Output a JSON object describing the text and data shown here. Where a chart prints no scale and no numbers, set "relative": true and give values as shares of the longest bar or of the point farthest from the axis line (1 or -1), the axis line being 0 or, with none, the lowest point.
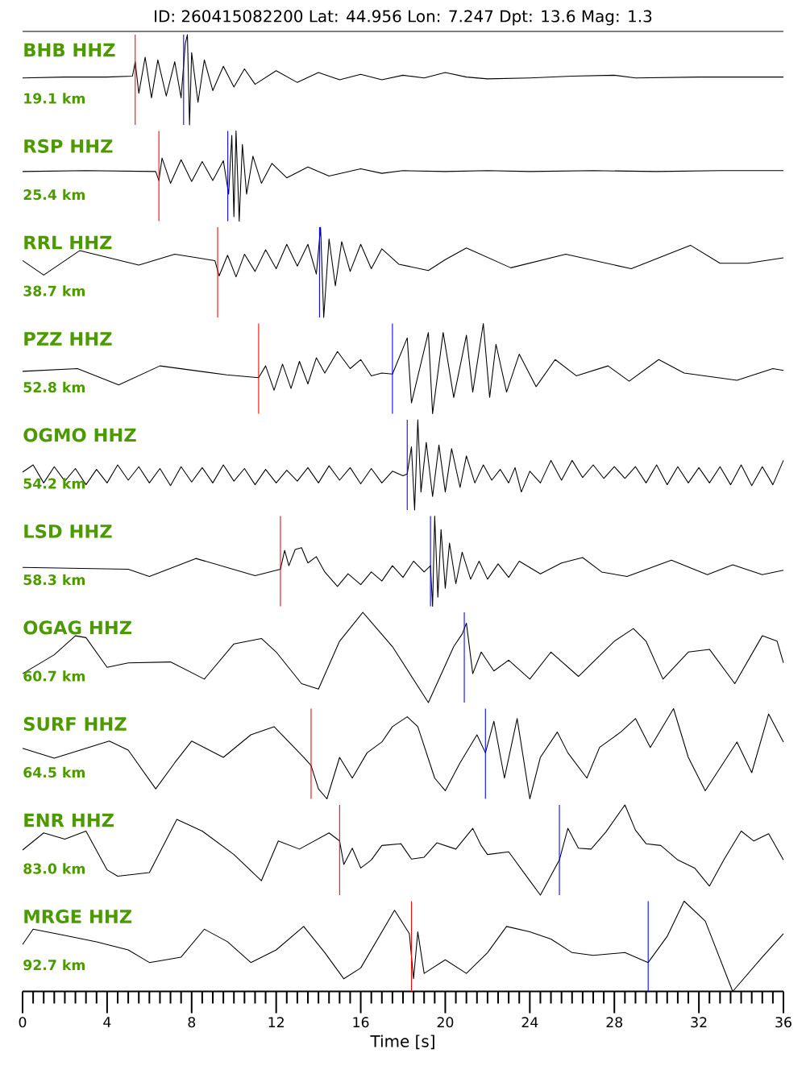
{
  "chart_data": [
    {
      "type": "line",
      "title": "BHB HHZ",
      "subtitle": "19.1 km",
      "annotations": [
        "ID: 260415082200 Lat: 44.956 Lon: 7.247 Dpt: 13.6 Mag: 1.3"
      ],
      "relative": true,
      "xlim": [
        0,
        36
      ],
      "tick_labels": false,
      "series": [
        {
          "color": "#000000",
          "x": [
            0,
            2,
            4,
            5.2,
            5.33,
            5.5,
            5.8,
            6.1,
            6.4,
            6.8,
            7.2,
            7.5,
            7.7,
            7.8,
            7.9,
            8.0,
            8.3,
            8.6,
            9,
            9.5,
            10,
            10.5,
            11,
            12,
            13,
            14,
            15,
            16,
            17,
            18,
            19,
            20,
            21,
            22,
            24,
            26,
            28,
            29,
            32,
            36
          ],
          "values": [
            0.52,
            0.53,
            0.53,
            0.54,
            0.7,
            0.35,
            0.75,
            0.3,
            0.72,
            0.32,
            0.7,
            0.3,
            0.9,
            1.0,
            0.0,
            0.8,
            0.25,
            0.72,
            0.38,
            0.65,
            0.42,
            0.62,
            0.45,
            0.6,
            0.47,
            0.58,
            0.5,
            0.56,
            0.5,
            0.55,
            0.52,
            0.58,
            0.53,
            0.51,
            0.52,
            0.54,
            0.55,
            0.52,
            0.53,
            0.53
          ]
        }
      ],
      "ref_lines": [
        {
          "axis": "x",
          "value": 5.33,
          "color": "#ff0000"
        },
        {
          "axis": "x",
          "value": 7.62,
          "color": "#0000ff"
        }
      ]
    },
    {
      "type": "line",
      "title": "RSP HHZ",
      "subtitle": "25.4 km",
      "relative": true,
      "xlim": [
        0,
        36
      ],
      "tick_labels": false,
      "series": [
        {
          "color": "#000000",
          "x": [
            0,
            3,
            6.3,
            6.45,
            6.6,
            7,
            7.5,
            8,
            8.5,
            9,
            9.5,
            9.75,
            9.9,
            10.0,
            10.1,
            10.25,
            10.4,
            10.6,
            10.9,
            11.3,
            11.8,
            12.5,
            13.5,
            14.5,
            16,
            17,
            18,
            20,
            22,
            24,
            27,
            30,
            33,
            36
          ],
          "values": [
            0.55,
            0.56,
            0.55,
            0.45,
            0.7,
            0.42,
            0.68,
            0.44,
            0.66,
            0.45,
            0.67,
            0.3,
            0.95,
            0.05,
            1.0,
            0.0,
            0.85,
            0.3,
            0.72,
            0.42,
            0.64,
            0.48,
            0.6,
            0.5,
            0.58,
            0.53,
            0.56,
            0.55,
            0.56,
            0.55,
            0.56,
            0.55,
            0.56,
            0.56
          ]
        }
      ],
      "ref_lines": [
        {
          "axis": "x",
          "value": 6.45,
          "color": "#ff0000"
        },
        {
          "axis": "x",
          "value": 9.71,
          "color": "#0000ff"
        }
      ]
    },
    {
      "type": "line",
      "title": "RRL HHZ",
      "subtitle": "38.7 km",
      "relative": true,
      "xlim": [
        0,
        36
      ],
      "tick_labels": false,
      "series": [
        {
          "color": "#000000",
          "x": [
            0,
            1.0,
            2.7,
            5.5,
            7.2,
            9.1,
            9.3,
            9.7,
            10.1,
            10.5,
            11,
            11.5,
            12,
            12.5,
            13,
            13.5,
            13.9,
            14.1,
            14.25,
            14.5,
            14.8,
            15.1,
            15.5,
            16.0,
            16.5,
            17.0,
            17.8,
            19.2,
            20.0,
            21.0,
            23.1,
            25.7,
            28.8,
            31.6,
            33.0,
            34.3,
            36
          ],
          "values": [
            0.63,
            0.47,
            0.74,
            0.58,
            0.7,
            0.63,
            0.46,
            0.69,
            0.45,
            0.7,
            0.51,
            0.75,
            0.54,
            0.81,
            0.57,
            0.81,
            0.48,
            1.0,
            0,
            0.87,
            0.35,
            0.84,
            0.51,
            0.81,
            0.54,
            0.76,
            0.59,
            0.52,
            0.64,
            0.77,
            0.55,
            0.7,
            0.54,
            0.8,
            0.6,
            0.6,
            0.66
          ]
        }
      ],
      "ref_lines": [
        {
          "axis": "x",
          "value": 9.23,
          "color": "#ff0000"
        },
        {
          "axis": "x",
          "value": 14.05,
          "color": "#0000ff"
        }
      ]
    },
    {
      "type": "line",
      "title": "PZZ HHZ",
      "subtitle": "52.8 km",
      "relative": true,
      "xlim": [
        0,
        36
      ],
      "tick_labels": false,
      "series": [
        {
          "color": "#000000",
          "x": [
            0,
            2.6,
            4.55,
            6.5,
            9.66,
            11.17,
            11.5,
            11.9,
            12.3,
            12.7,
            13.1,
            13.5,
            13.9,
            14.3,
            14.9,
            15.5,
            16.0,
            16.5,
            17.0,
            17.5,
            18.2,
            18.4,
            19.2,
            19.4,
            19.9,
            20.4,
            21.0,
            21.3,
            21.8,
            22.1,
            22.4,
            22.9,
            23.5,
            24.3,
            25.2,
            26.2,
            27.7,
            28.7,
            30.1,
            31.3,
            33.8,
            35.5,
            36
          ],
          "values": [
            0.47,
            0.5,
            0.32,
            0.53,
            0.43,
            0.4,
            0.53,
            0.26,
            0.55,
            0.28,
            0.58,
            0.33,
            0.62,
            0.45,
            0.69,
            0.5,
            0.6,
            0.42,
            0.45,
            0.44,
            0.84,
            0.12,
            0.9,
            0,
            0.9,
            0.18,
            0.87,
            0.24,
            1.0,
            0.18,
            0.77,
            0.24,
            0.66,
            0.3,
            0.6,
            0.42,
            0.53,
            0.36,
            0.6,
            0.45,
            0.37,
            0.5,
            0.48
          ]
        }
      ],
      "ref_lines": [
        {
          "axis": "x",
          "value": 11.17,
          "color": "#ff0000"
        },
        {
          "axis": "x",
          "value": 17.5,
          "color": "#0000ff"
        }
      ]
    },
    {
      "type": "line",
      "title": "OGMO HHZ",
      "subtitle": "54.2 km",
      "relative": true,
      "xlim": [
        0,
        36
      ],
      "tick_labels": false,
      "series": [
        {
          "color": "#000000",
          "x": [
            0,
            0.5,
            1,
            1.5,
            2,
            2.5,
            3,
            3.5,
            4,
            4.5,
            5,
            5.5,
            6,
            6.5,
            7,
            7.5,
            8,
            8.5,
            9,
            9.5,
            10,
            10.5,
            11,
            11.5,
            12,
            12.5,
            13,
            13.5,
            14,
            14.5,
            15,
            15.5,
            16,
            16.5,
            17,
            17.5,
            18.0,
            18.2,
            18.4,
            18.55,
            18.7,
            18.85,
            19.1,
            19.4,
            19.7,
            20.0,
            20.3,
            20.7,
            21.0,
            21.4,
            21.8,
            22.2,
            22.6,
            23.0,
            23.3,
            23.6,
            24,
            24.5,
            25,
            25.5,
            26,
            26.5,
            27,
            27.5,
            28,
            28.5,
            29,
            29.5,
            30,
            30.5,
            31,
            31.5,
            32,
            32.5,
            33,
            33.5,
            34,
            34.5,
            35,
            35.5,
            36
          ],
          "values": [
            0.42,
            0.5,
            0.3,
            0.48,
            0.32,
            0.46,
            0.28,
            0.45,
            0.3,
            0.5,
            0.33,
            0.48,
            0.3,
            0.46,
            0.27,
            0.48,
            0.31,
            0.47,
            0.3,
            0.5,
            0.32,
            0.46,
            0.28,
            0.45,
            0.3,
            0.44,
            0.32,
            0.47,
            0.3,
            0.49,
            0.33,
            0.47,
            0.29,
            0.46,
            0.3,
            0.43,
            0.38,
            0.4,
            0.7,
            0.0,
            1.0,
            0.2,
            0.75,
            0.15,
            0.72,
            0.2,
            0.68,
            0.25,
            0.6,
            0.3,
            0.5,
            0.33,
            0.45,
            0.3,
            0.47,
            0.2,
            0.43,
            0.3,
            0.55,
            0.33,
            0.55,
            0.36,
            0.5,
            0.35,
            0.48,
            0.35,
            0.48,
            0.3,
            0.5,
            0.28,
            0.48,
            0.3,
            0.47,
            0.3,
            0.48,
            0.28,
            0.5,
            0.27,
            0.48,
            0.28,
            0.55
          ]
        }
      ],
      "ref_lines": [
        {
          "axis": "x",
          "value": 18.2,
          "color": "#0000ff"
        }
      ]
    },
    {
      "type": "line",
      "title": "LSD HHZ",
      "subtitle": "58.3 km",
      "relative": true,
      "xlim": [
        0,
        36
      ],
      "tick_labels": false,
      "series": [
        {
          "color": "#000000",
          "x": [
            0,
            5.0,
            6.0,
            8.2,
            11.0,
            12.2,
            12.4,
            12.6,
            12.9,
            13.2,
            13.5,
            13.9,
            14.3,
            14.9,
            15.4,
            16.0,
            16.5,
            17.0,
            17.5,
            18.0,
            18.5,
            19.0,
            19.3,
            19.4,
            19.5,
            19.65,
            19.8,
            20.0,
            20.2,
            20.5,
            20.8,
            21.2,
            21.6,
            22.0,
            22.5,
            23.0,
            23.5,
            24.5,
            25.5,
            26.5,
            27.4,
            28.6,
            30.7,
            32.4,
            33.6,
            35.0,
            36
          ],
          "values": [
            0.43,
            0.41,
            0.33,
            0.53,
            0.34,
            0.41,
            0.62,
            0.45,
            0.63,
            0.65,
            0.48,
            0.55,
            0.38,
            0.22,
            0.36,
            0.24,
            0.38,
            0.28,
            0.45,
            0.32,
            0.5,
            0.38,
            0.45,
            0.0,
            1.0,
            0.1,
            0.85,
            0.2,
            0.7,
            0.25,
            0.6,
            0.3,
            0.5,
            0.3,
            0.47,
            0.32,
            0.5,
            0.36,
            0.48,
            0.54,
            0.38,
            0.33,
            0.51,
            0.35,
            0.46,
            0.35,
            0.4
          ]
        }
      ],
      "ref_lines": [
        {
          "axis": "x",
          "value": 12.2,
          "color": "#ff0000"
        },
        {
          "axis": "x",
          "value": 19.3,
          "color": "#0000ff"
        }
      ]
    },
    {
      "type": "line",
      "title": "OGAG HHZ",
      "subtitle": "60.7 km",
      "relative": true,
      "xlim": [
        0,
        36
      ],
      "tick_labels": false,
      "series": [
        {
          "color": "#000000",
          "x": [
            0,
            1.5,
            2.5,
            3.0,
            4.0,
            5.0,
            7.0,
            8.6,
            10.0,
            11.3,
            12.0,
            13.2,
            14.0,
            15.0,
            16.1,
            17.5,
            19.2,
            20.4,
            20.8,
            21.0,
            21.3,
            21.7,
            22.3,
            23.0,
            24.0,
            25.0,
            26.3,
            28.0,
            28.9,
            29.5,
            30.3,
            31.5,
            32.5,
            33.7,
            35.0,
            35.7,
            36
          ],
          "values": [
            0.32,
            0.53,
            0.74,
            0.72,
            0.39,
            0.44,
            0.45,
            0.26,
            0.65,
            0.71,
            0.56,
            0.21,
            0.15,
            0.68,
            1.0,
            0.62,
            0,
            0.62,
            0.76,
            0.88,
            0.32,
            0.56,
            0.35,
            0.47,
            0.26,
            0.56,
            0.29,
            0.68,
            0.82,
            0.68,
            0.26,
            0.56,
            0.59,
            0.21,
            0.74,
            0.68,
            0.44
          ]
        }
      ],
      "ref_lines": [
        {
          "axis": "x",
          "value": 20.9,
          "color": "#0000ff"
        }
      ]
    },
    {
      "type": "line",
      "title": "SURF HHZ",
      "subtitle": "64.5 km",
      "relative": true,
      "xlim": [
        0,
        36
      ],
      "tick_labels": false,
      "series": [
        {
          "color": "#000000",
          "x": [
            0,
            1.5,
            3.0,
            4.1,
            5.0,
            6.3,
            7.2,
            8.0,
            9.5,
            10.8,
            11.9,
            13.3,
            13.65,
            14.0,
            14.4,
            15.0,
            15.6,
            16.3,
            17.0,
            17.5,
            18.2,
            18.7,
            19.5,
            20.0,
            20.7,
            21.5,
            21.9,
            22.3,
            22.8,
            23.4,
            24.0,
            24.5,
            25.3,
            25.8,
            26.7,
            27.3,
            28.3,
            29.0,
            29.7,
            30.8,
            31.5,
            32.3,
            33.8,
            34.5,
            35.3,
            36
          ],
          "values": [
            0.56,
            0.45,
            0.56,
            0.64,
            0.54,
            0.11,
            0.4,
            0.64,
            0.46,
            0.71,
            0.8,
            0.46,
            0.37,
            0.11,
            0,
            0.46,
            0.23,
            0.51,
            0.63,
            0.8,
            0.91,
            0.8,
            0.23,
            0.09,
            0.4,
            0.71,
            0.51,
            0.86,
            0.23,
            0.89,
            0,
            0.46,
            0.74,
            0.51,
            0.23,
            0.57,
            0.74,
            0.89,
            0.57,
            1.0,
            0.46,
            0.09,
            0.63,
            0.29,
            0.94,
            0.63
          ]
        }
      ],
      "ref_lines": [
        {
          "axis": "x",
          "value": 13.65,
          "color": "#ff0000"
        },
        {
          "axis": "x",
          "value": 21.9,
          "color": "#0000ff"
        }
      ]
    },
    {
      "type": "line",
      "title": "ENR HHZ",
      "subtitle": "83.0 km",
      "relative": true,
      "xlim": [
        0,
        36
      ],
      "tick_labels": false,
      "series": [
        {
          "color": "#000000",
          "x": [
            0,
            1.0,
            2.0,
            3.0,
            4.0,
            4.5,
            6.0,
            7.3,
            8.5,
            10.0,
            11.3,
            12.1,
            13.1,
            14.5,
            15.0,
            15.2,
            15.6,
            16.0,
            16.5,
            17.0,
            17.9,
            18.4,
            19.0,
            19.6,
            20.5,
            21.3,
            21.7,
            22.0,
            23.0,
            24.0,
            24.5,
            25.4,
            25.8,
            26.3,
            26.9,
            27.6,
            28.5,
            29.0,
            29.5,
            30.2,
            31.0,
            31.8,
            32.5,
            33.2,
            34.0,
            34.6,
            35.3,
            36
          ],
          "values": [
            0.5,
            0.69,
            0.62,
            0.71,
            0.28,
            0.21,
            0.25,
            0.84,
            0.71,
            0.45,
            0.16,
            0.6,
            0.51,
            0.69,
            0.6,
            0.34,
            0.52,
            0.3,
            0.39,
            0.55,
            0.57,
            0.4,
            0.42,
            0.58,
            0.51,
            0.74,
            0.55,
            0.45,
            0.48,
            0.16,
            0,
            0.39,
            0.74,
            0.52,
            0.51,
            0.7,
            1.0,
            0.72,
            0.57,
            0.55,
            0.39,
            0.3,
            0.1,
            0.4,
            0.71,
            0.6,
            0.68,
            0.39
          ]
        }
      ],
      "ref_lines": [
        {
          "axis": "x",
          "value": 15.0,
          "color": "#ff0000"
        },
        {
          "axis": "x",
          "value": 25.4,
          "color": "#0000ff"
        }
      ]
    },
    {
      "type": "line",
      "title": "MRGE HHZ",
      "subtitle": "92.7 km",
      "xlabel": "Time [s]",
      "relative": true,
      "xlim": [
        0,
        36
      ],
      "tick_labels": "x",
      "xticks": [
        0,
        {
          "value": 0.5,
          "label": null
        },
        {
          "value": 1,
          "label": null
        },
        {
          "value": 1.5,
          "label": null
        },
        {
          "value": 2,
          "label": null
        },
        {
          "value": 2.5,
          "label": null
        },
        {
          "value": 3,
          "label": null
        },
        {
          "value": 3.5,
          "label": null
        },
        4,
        {
          "value": 4.5,
          "label": null
        },
        {
          "value": 5,
          "label": null
        },
        {
          "value": 5.5,
          "label": null
        },
        {
          "value": 6,
          "label": null
        },
        {
          "value": 6.5,
          "label": null
        },
        {
          "value": 7,
          "label": null
        },
        {
          "value": 7.5,
          "label": null
        },
        8,
        {
          "value": 8.5,
          "label": null
        },
        {
          "value": 9,
          "label": null
        },
        {
          "value": 9.5,
          "label": null
        },
        {
          "value": 10,
          "label": null
        },
        {
          "value": 10.5,
          "label": null
        },
        {
          "value": 11,
          "label": null
        },
        {
          "value": 11.5,
          "label": null
        },
        12,
        {
          "value": 12.5,
          "label": null
        },
        {
          "value": 13,
          "label": null
        },
        {
          "value": 13.5,
          "label": null
        },
        {
          "value": 14,
          "label": null
        },
        {
          "value": 14.5,
          "label": null
        },
        {
          "value": 15,
          "label": null
        },
        {
          "value": 15.5,
          "label": null
        },
        16,
        {
          "value": 16.5,
          "label": null
        },
        {
          "value": 17,
          "label": null
        },
        {
          "value": 17.5,
          "label": null
        },
        {
          "value": 18,
          "label": null
        },
        {
          "value": 18.5,
          "label": null
        },
        {
          "value": 19,
          "label": null
        },
        {
          "value": 19.5,
          "label": null
        },
        20,
        {
          "value": 20.5,
          "label": null
        },
        {
          "value": 21,
          "label": null
        },
        {
          "value": 21.5,
          "label": null
        },
        {
          "value": 22,
          "label": null
        },
        {
          "value": 22.5,
          "label": null
        },
        {
          "value": 23,
          "label": null
        },
        {
          "value": 23.5,
          "label": null
        },
        24,
        {
          "value": 24.5,
          "label": null
        },
        {
          "value": 25,
          "label": null
        },
        {
          "value": 25.5,
          "label": null
        },
        {
          "value": 26,
          "label": null
        },
        {
          "value": 26.5,
          "label": null
        },
        {
          "value": 27,
          "label": null
        },
        {
          "value": 27.5,
          "label": null
        },
        28,
        {
          "value": 28.5,
          "label": null
        },
        {
          "value": 29,
          "label": null
        },
        {
          "value": 29.5,
          "label": null
        },
        {
          "value": 30,
          "label": null
        },
        {
          "value": 30.5,
          "label": null
        },
        {
          "value": 31,
          "label": null
        },
        {
          "value": 31.5,
          "label": null
        },
        32,
        {
          "value": 32.5,
          "label": null
        },
        {
          "value": 33,
          "label": null
        },
        {
          "value": 33.5,
          "label": null
        },
        {
          "value": 34,
          "label": null
        },
        {
          "value": 34.5,
          "label": null
        },
        {
          "value": 35,
          "label": null
        },
        {
          "value": 35.5,
          "label": null
        },
        36
      ],
      "series": [
        {
          "color": "#000000",
          "x": [
            0,
            0.5,
            2.0,
            3.5,
            5.0,
            6.0,
            7.5,
            8.6,
            9.7,
            10.8,
            12.0,
            13.3,
            14.3,
            15.2,
            16.0,
            17.6,
            18.3,
            18.5,
            18.7,
            19.0,
            20.0,
            21.0,
            22.0,
            22.9,
            24.0,
            25.0,
            26.0,
            27.0,
            28.5,
            29.6,
            30.5,
            31.3,
            32.3,
            33.6,
            35.0,
            36
          ],
          "values": [
            0.52,
            0.69,
            0.62,
            0.55,
            0.46,
            0.32,
            0.38,
            0.69,
            0.55,
            0.32,
            0.46,
            0.72,
            0.43,
            0.14,
            0.26,
            0.9,
            0.64,
            0.14,
            0.66,
            0.2,
            0.35,
            0.2,
            0.43,
            0.72,
            0.66,
            0.58,
            0.43,
            0.4,
            0.43,
            0.32,
            0.61,
            1.0,
            0.78,
            0,
            0.38,
            0.64
          ]
        }
      ],
      "ref_lines": [
        {
          "axis": "x",
          "value": 18.4,
          "color": "#ff0000"
        },
        {
          "axis": "x",
          "value": 29.6,
          "color": "#0000ff"
        }
      ]
    }
  ]
}
